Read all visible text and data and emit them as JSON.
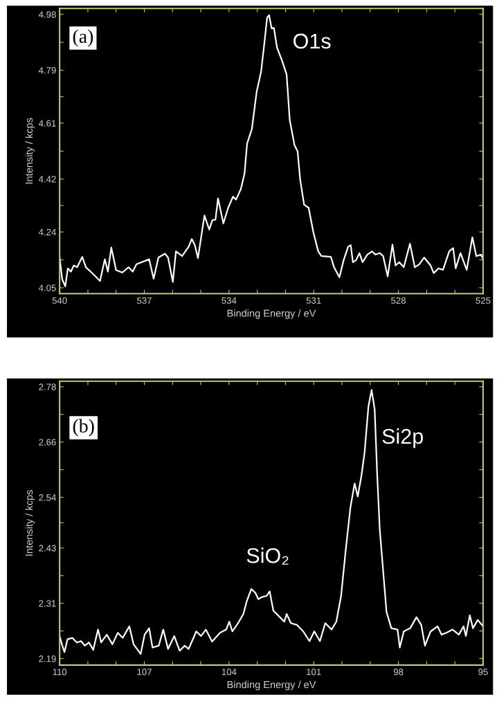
{
  "chart_data": [
    {
      "type": "line",
      "xlabel": "Binding Energy / eV",
      "ylabel": "Intensity / kcps",
      "annotations": [
        "(a)",
        "O1s"
      ],
      "xlim": [
        540,
        525
      ],
      "ylim": [
        4.03,
        5.0
      ],
      "xticks": [
        540,
        {
          "value": 539,
          "label": null
        },
        {
          "value": 538,
          "label": null
        },
        537,
        {
          "value": 536,
          "label": null
        },
        {
          "value": 535,
          "label": null
        },
        534,
        {
          "value": 533,
          "label": null
        },
        {
          "value": 532,
          "label": null
        },
        531,
        {
          "value": 530,
          "label": null
        },
        {
          "value": 529,
          "label": null
        },
        528,
        {
          "value": 527,
          "label": null
        },
        {
          "value": 526,
          "label": null
        },
        525
      ],
      "yticks": [
        4.05,
        {
          "value": 4.145,
          "label": null
        },
        4.24,
        {
          "value": 4.33,
          "label": null
        },
        4.42,
        {
          "value": 4.515,
          "label": null
        },
        4.61,
        {
          "value": 4.7,
          "label": null
        },
        4.79,
        {
          "value": 4.885,
          "label": null
        },
        4.98
      ],
      "line_style": "solid",
      "series": [
        {
          "color": "#ffffff",
          "x": [
            540,
            539.91,
            539.8,
            539.71,
            539.6,
            539.5,
            539.38,
            539.2,
            539.07,
            538.9,
            538.73,
            538.57,
            538.4,
            538.29,
            538.17,
            538.0,
            537.78,
            537.56,
            537.41,
            537.28,
            536.83,
            536.67,
            536.5,
            536.27,
            536.16,
            535.99,
            535.88,
            535.66,
            535.43,
            535.32,
            535.21,
            535.1,
            534.87,
            534.7,
            534.59,
            534.48,
            534.39,
            534.2,
            534.03,
            533.86,
            533.75,
            533.58,
            533.45,
            533.36,
            533.19,
            533.02,
            532.86,
            532.74,
            532.65,
            532.58,
            532.49,
            532.41,
            532.3,
            532.13,
            531.96,
            531.85,
            531.68,
            531.57,
            531.48,
            531.34,
            531.18,
            531.01,
            530.84,
            530.73,
            530.39,
            530.28,
            530.09,
            529.94,
            529.78,
            529.69,
            529.61,
            529.5,
            529.38,
            529.27,
            529.1,
            528.93,
            528.82,
            528.66,
            528.54,
            528.38,
            528.21,
            528.1,
            527.97,
            527.81,
            527.59,
            527.42,
            527.26,
            527.09,
            526.86,
            526.75,
            526.58,
            526.42,
            526.2,
            526.06,
            525.97,
            525.8,
            525.58,
            525.38,
            525.24,
            525.07,
            525
          ],
          "values": [
            4.153,
            4.079,
            4.055,
            4.116,
            4.105,
            4.126,
            4.12,
            4.155,
            4.12,
            4.105,
            4.089,
            4.073,
            4.147,
            4.105,
            4.187,
            4.11,
            4.102,
            4.12,
            4.105,
            4.13,
            4.147,
            4.081,
            4.153,
            4.166,
            4.153,
            4.07,
            4.174,
            4.158,
            4.19,
            4.216,
            4.195,
            4.151,
            4.296,
            4.248,
            4.28,
            4.282,
            4.354,
            4.269,
            4.322,
            4.36,
            4.35,
            4.386,
            4.439,
            4.54,
            4.59,
            4.717,
            4.787,
            4.889,
            4.969,
            4.977,
            4.932,
            4.934,
            4.867,
            4.825,
            4.776,
            4.621,
            4.535,
            4.514,
            4.418,
            4.333,
            4.322,
            4.238,
            4.174,
            4.158,
            4.155,
            4.12,
            4.086,
            4.144,
            4.19,
            4.195,
            4.137,
            4.144,
            4.168,
            4.137,
            4.163,
            4.174,
            4.163,
            4.168,
            4.158,
            4.089,
            4.197,
            4.126,
            4.137,
            4.12,
            4.2,
            4.12,
            4.13,
            4.153,
            4.126,
            4.1,
            4.116,
            4.111,
            4.174,
            4.185,
            4.116,
            4.168,
            4.111,
            4.222,
            4.158,
            4.163,
            4.147
          ]
        }
      ]
    },
    {
      "type": "line",
      "xlabel": "Binding Energy / eV",
      "ylabel": "Intensity / kcps",
      "annotations": [
        "(b)",
        "Si2p",
        "SiO₂"
      ],
      "xlim": [
        110,
        95
      ],
      "ylim": [
        2.176,
        2.792
      ],
      "xticks": [
        110,
        {
          "value": 109,
          "label": null
        },
        {
          "value": 108,
          "label": null
        },
        107,
        {
          "value": 106,
          "label": null
        },
        {
          "value": 105,
          "label": null
        },
        104,
        {
          "value": 103,
          "label": null
        },
        {
          "value": 102,
          "label": null
        },
        101,
        {
          "value": 100,
          "label": null
        },
        {
          "value": 99,
          "label": null
        },
        98,
        {
          "value": 97,
          "label": null
        },
        {
          "value": 96,
          "label": null
        },
        95
      ],
      "yticks": [
        2.19,
        {
          "value": 2.25,
          "label": null
        },
        2.31,
        {
          "value": 2.37,
          "label": null
        },
        2.43,
        {
          "value": 2.485,
          "label": null
        },
        2.54,
        {
          "value": 2.6,
          "label": null
        },
        2.66,
        {
          "value": 2.72,
          "label": null
        },
        2.78
      ],
      "line_style": "solid",
      "series": [
        {
          "color": "#ffffff",
          "x": [
            110,
            109.92,
            109.83,
            109.72,
            109.55,
            109.39,
            109.24,
            109.11,
            108.96,
            108.81,
            108.64,
            108.53,
            108.33,
            108.13,
            107.94,
            107.77,
            107.53,
            107.38,
            107.13,
            106.99,
            106.83,
            106.71,
            106.49,
            106.33,
            106.16,
            105.94,
            105.75,
            105.57,
            105.43,
            105.16,
            104.99,
            104.82,
            104.6,
            104.32,
            104.1,
            103.99,
            103.88,
            103.65,
            103.49,
            103.37,
            103.21,
            103.07,
            102.96,
            102.82,
            102.67,
            102.56,
            102.43,
            102.2,
            102.04,
            101.96,
            101.81,
            101.59,
            101.37,
            101.15,
            100.98,
            100.78,
            100.59,
            100.37,
            100.2,
            100.03,
            99.87,
            99.7,
            99.55,
            99.44,
            99.31,
            99.2,
            99.06,
            98.95,
            98.84,
            98.75,
            98.66,
            98.55,
            98.42,
            98.25,
            98.03,
            97.95,
            97.81,
            97.58,
            97.36,
            97.19,
            97.06,
            96.86,
            96.61,
            96.47,
            96.3,
            96.08,
            95.86,
            95.69,
            95.61,
            95.47,
            95.36,
            95.19,
            95
          ],
          "values": [
            2.239,
            2.221,
            2.204,
            2.232,
            2.235,
            2.225,
            2.228,
            2.218,
            2.225,
            2.209,
            2.253,
            2.225,
            2.242,
            2.221,
            2.246,
            2.235,
            2.26,
            2.221,
            2.2,
            2.242,
            2.256,
            2.214,
            2.218,
            2.253,
            2.211,
            2.239,
            2.207,
            2.218,
            2.211,
            2.249,
            2.239,
            2.253,
            2.227,
            2.246,
            2.253,
            2.27,
            2.249,
            2.27,
            2.287,
            2.315,
            2.341,
            2.333,
            2.319,
            2.324,
            2.326,
            2.336,
            2.294,
            2.28,
            2.27,
            2.287,
            2.267,
            2.263,
            2.249,
            2.228,
            2.249,
            2.228,
            2.267,
            2.253,
            2.27,
            2.326,
            2.423,
            2.518,
            2.57,
            2.542,
            2.587,
            2.636,
            2.738,
            2.773,
            2.731,
            2.587,
            2.47,
            2.388,
            2.291,
            2.256,
            2.253,
            2.214,
            2.249,
            2.256,
            2.28,
            2.263,
            2.218,
            2.249,
            2.26,
            2.242,
            2.246,
            2.253,
            2.242,
            2.26,
            2.239,
            2.284,
            2.256,
            2.274,
            2.26
          ]
        }
      ]
    }
  ]
}
